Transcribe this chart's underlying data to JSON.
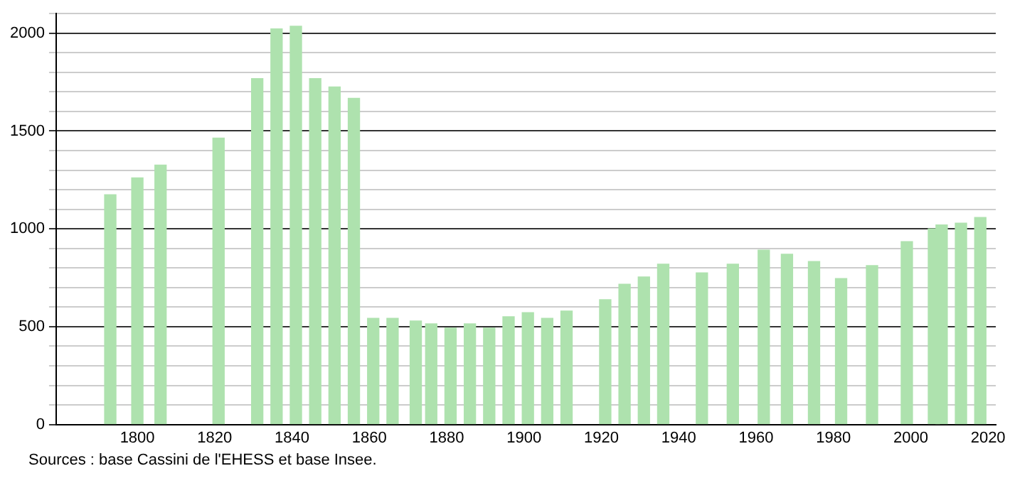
{
  "chart_data": {
    "type": "bar",
    "x": [
      1793,
      1800,
      1806,
      1821,
      1831,
      1836,
      1841,
      1846,
      1851,
      1856,
      1861,
      1866,
      1872,
      1876,
      1881,
      1886,
      1891,
      1896,
      1901,
      1906,
      1911,
      1921,
      1926,
      1931,
      1936,
      1946,
      1954,
      1962,
      1968,
      1975,
      1982,
      1990,
      1999,
      2006,
      2008,
      2013,
      2018
    ],
    "values": [
      1174,
      1261,
      1326,
      1464,
      1768,
      2022,
      2036,
      1768,
      1725,
      1667,
      543,
      543,
      529,
      514,
      493,
      514,
      493,
      551,
      572,
      543,
      580,
      638,
      717,
      754,
      819,
      775,
      819,
      891,
      870,
      833,
      746,
      812,
      935,
      1000,
      1020,
      1029,
      1058
    ],
    "color": "#aee2ae",
    "xlim": [
      1779,
      2022
    ],
    "xticks": [
      1800,
      1820,
      1840,
      1860,
      1880,
      1900,
      1920,
      1940,
      1960,
      1980,
      2000,
      2020
    ],
    "ylim": [
      0,
      2100
    ],
    "yticks": [
      0,
      {
        "value": 100,
        "label": null
      },
      {
        "value": 200,
        "label": null
      },
      {
        "value": 300,
        "label": null
      },
      {
        "value": 400,
        "label": null
      },
      500,
      {
        "value": 600,
        "label": null
      },
      {
        "value": 700,
        "label": null
      },
      {
        "value": 800,
        "label": null
      },
      {
        "value": 900,
        "label": null
      },
      1000,
      {
        "value": 1100,
        "label": null
      },
      {
        "value": 1200,
        "label": null
      },
      {
        "value": 1300,
        "label": null
      },
      {
        "value": 1400,
        "label": null
      },
      1500,
      {
        "value": 1600,
        "label": null
      },
      {
        "value": 1700,
        "label": null
      },
      {
        "value": 1800,
        "label": null
      },
      {
        "value": 1900,
        "label": null
      },
      2000,
      {
        "value": 2100,
        "label": null
      }
    ],
    "grid": "y",
    "annotations": [
      "Sources : base Cassini de l'EHESS et base Insee."
    ]
  }
}
